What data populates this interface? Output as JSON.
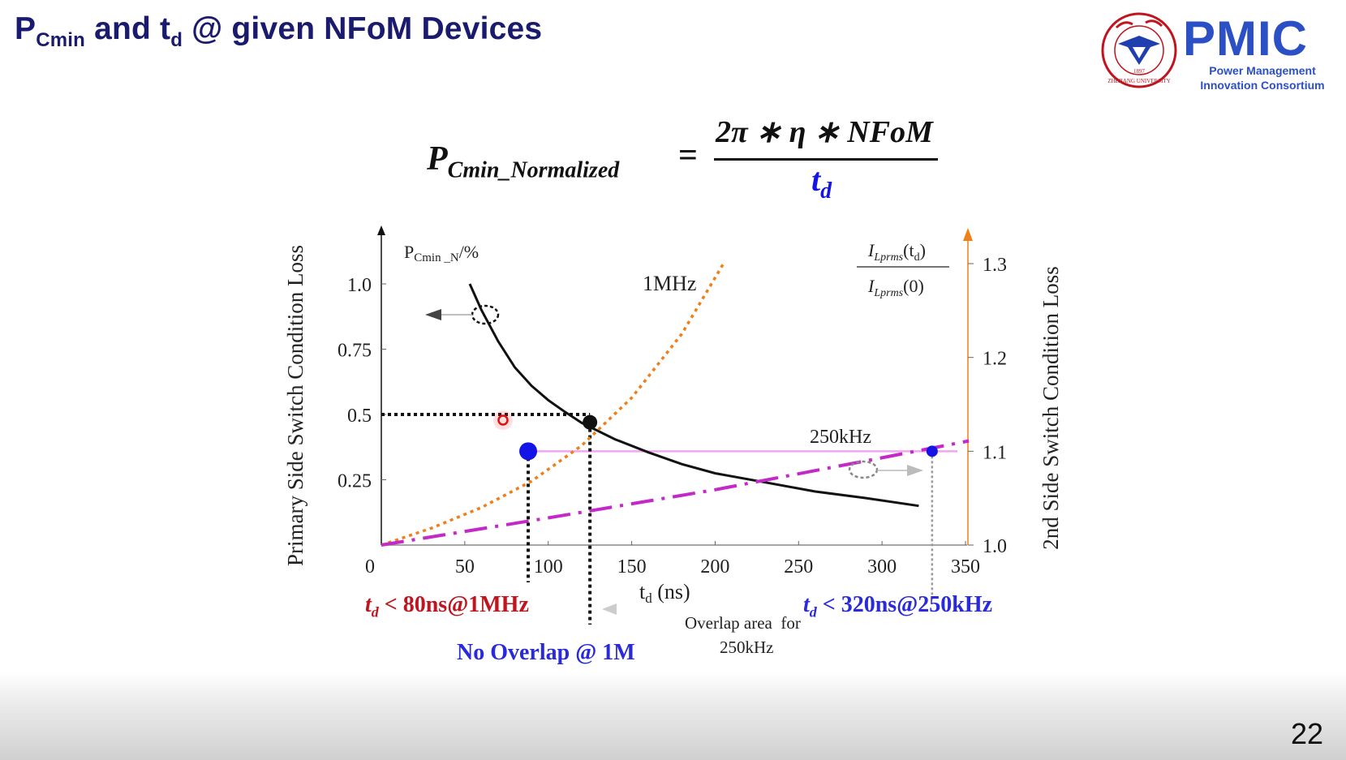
{
  "slide": {
    "title_main": "P",
    "title_sub1": "Cmin",
    "title_mid": " and t",
    "title_sub2": "d",
    "title_end": " @ given NFoM Devices",
    "page_number": "22"
  },
  "logo": {
    "word": "PMIC",
    "line1": "Power Management",
    "line2": "Innovation Consortium",
    "seal_text": "ZHEJIANG UNIVERSITY",
    "seal_year": "1897"
  },
  "formula": {
    "lhs": "P",
    "lhs_sub": "Cmin_Normalized",
    "equals": "=",
    "numerator": "2π ∗ η ∗ NFoM",
    "denominator": "t",
    "denominator_sub": "d"
  },
  "colors": {
    "title": "#1a1a6e",
    "logo_blue": "#2b4fc4",
    "orange_curve": "#f07f1a",
    "magenta_curve": "#c428c8",
    "pink_line": "#f2a6f2",
    "blue_point": "#1414e6",
    "red_label": "#c0141e",
    "right_axis": "#f07f1a"
  },
  "chart_data": {
    "type": "line",
    "xlabel": "t",
    "xlabel_sub": "d",
    "xlabel_unit": " (ns)",
    "xlim": [
      0,
      350
    ],
    "x_ticks": [
      0,
      50,
      100,
      150,
      200,
      250,
      300,
      350
    ],
    "y_left": {
      "label": "Primary Side Switch Condition Loss",
      "unit_label": "P",
      "unit_sub": "Cmin _N",
      "unit_suffix": "/%",
      "lim": [
        0,
        1.0
      ],
      "ticks": [
        0.25,
        0.5,
        0.75,
        1.0
      ],
      "tick_labels": [
        "0.25",
        "0.5",
        "0.75",
        "1.0"
      ]
    },
    "y_right": {
      "label": "2nd Side Switch Condition Loss",
      "num_label": "I",
      "num_sub": "Lprms",
      "num_arg": "(t",
      "num_arg_sub": "d",
      "num_arg_end": ")",
      "den_label": "I",
      "den_sub": "Lprms",
      "den_arg": "(0)",
      "lim": [
        1.0,
        1.3
      ],
      "ticks": [
        1.0,
        1.1,
        1.2,
        1.3
      ],
      "tick_labels": [
        "1.0",
        "1.1",
        "1.2",
        "1.3"
      ]
    },
    "series": [
      {
        "key": "pcmin",
        "axis": "left",
        "style": "solid",
        "x": [
          53,
          60,
          70,
          80,
          90,
          100,
          110,
          120,
          140,
          160,
          180,
          200,
          230,
          260,
          290,
          322
        ],
        "y": [
          1.0,
          0.9,
          0.78,
          0.68,
          0.61,
          0.555,
          0.51,
          0.468,
          0.405,
          0.355,
          0.31,
          0.275,
          0.24,
          0.205,
          0.18,
          0.15
        ]
      },
      {
        "key": "irms_1mhz",
        "name": "1MHz",
        "axis": "right",
        "style": "dotted",
        "x": [
          0,
          30,
          60,
          90,
          120,
          150,
          180,
          205
        ],
        "y": [
          1.0,
          1.018,
          1.04,
          1.068,
          1.106,
          1.157,
          1.225,
          1.3
        ]
      },
      {
        "key": "irms_250khz",
        "name": "250kHz",
        "axis": "right",
        "style": "dashdot",
        "x": [
          0,
          100,
          200,
          300,
          352
        ],
        "y": [
          1.0,
          1.029,
          1.059,
          1.093,
          1.111
        ]
      }
    ],
    "points": [
      {
        "key": "cross_1mhz",
        "x": 125,
        "y": 0.47,
        "axis": "left",
        "color": "black"
      },
      {
        "key": "pt_80ns",
        "x": 88,
        "y": 1.1,
        "axis": "right",
        "color": "blue"
      },
      {
        "key": "pt_320ns",
        "x": 330,
        "y": 1.1,
        "axis": "right",
        "color": "blue"
      }
    ],
    "reference_lines": [
      {
        "key": "h_05",
        "from": 0,
        "to": 125,
        "y": 0.5,
        "axis": "left",
        "style": "dotted"
      },
      {
        "key": "v_125",
        "x": 125,
        "style": "dotted"
      },
      {
        "key": "v_88",
        "x": 88,
        "style": "dotted"
      },
      {
        "key": "v_330",
        "x": 330,
        "style": "dotted-grey"
      },
      {
        "key": "h_11",
        "from": 88,
        "to": 350,
        "y": 1.1,
        "axis": "right",
        "style": "pink"
      }
    ],
    "labels": {
      "series_1mhz": "1MHz",
      "series_250khz": "250kHz"
    },
    "annotations": {
      "td_1mhz_t": "t",
      "td_1mhz_sub": "d",
      "td_1mhz_rest": " < 80ns@1MHz",
      "td_250_t": "t",
      "td_250_sub": "d",
      "td_250_rest": " < 320ns@250kHz",
      "no_overlap": "No Overlap @ 1M",
      "overlap_line1": "Overlap area  for",
      "overlap_line2": "250kHz"
    }
  }
}
